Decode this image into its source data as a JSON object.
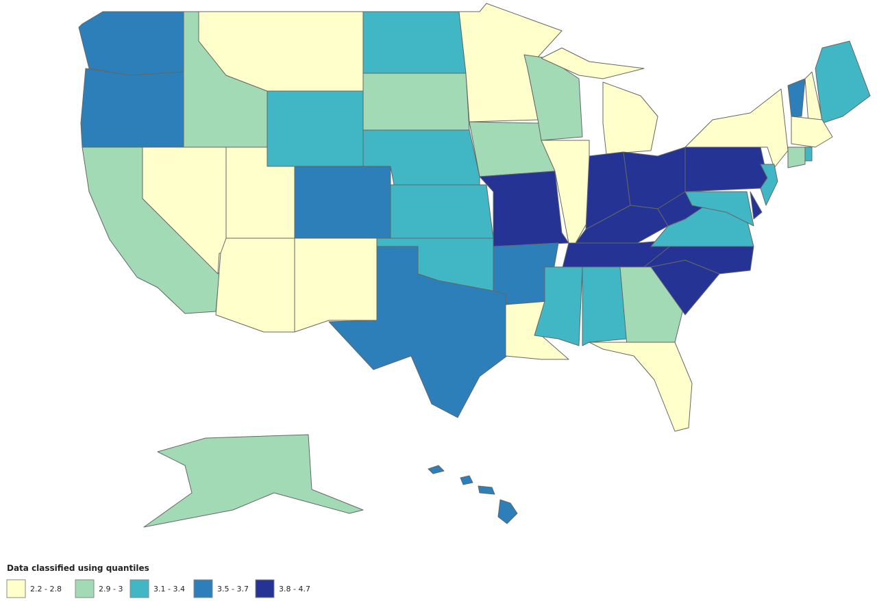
{
  "legend": {
    "title": "Data classified using quantiles",
    "items": [
      {
        "label": "2.2 - 2.8",
        "color": "#ffffcc"
      },
      {
        "label": "2.9 - 3",
        "color": "#a1dab4"
      },
      {
        "label": "3.1 - 3.4",
        "color": "#41b6c4"
      },
      {
        "label": "3.5 - 3.7",
        "color": "#2c7fb8"
      },
      {
        "label": "3.8 - 4.7",
        "color": "#253494"
      }
    ]
  }
}
